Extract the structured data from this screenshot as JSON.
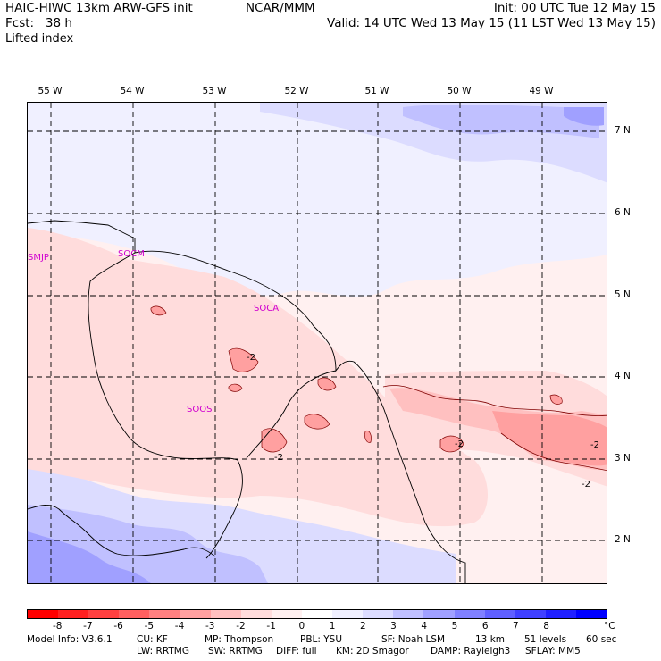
{
  "header": {
    "title": "HAIC-HIWC 13km ARW-GFS init",
    "org": "NCAR/MMM",
    "init": "Init: 00 UTC Tue 12 May 15",
    "fcst": "Fcst:   38 h",
    "valid": "Valid: 14 UTC Wed 13 May 15 (11 LST Wed 13 May 15)",
    "field": "Lifted index"
  },
  "longitudes": [
    "55 W",
    "54 W",
    "53 W",
    "52 W",
    "51 W",
    "50 W",
    "49 W"
  ],
  "latitudes": [
    "7 N",
    "6 N",
    "5 N",
    "4 N",
    "3 N",
    "2 N"
  ],
  "regions": [
    "SMJP",
    "SOCM",
    "SOCA",
    "SOOS"
  ],
  "contour_labels": [
    "-2",
    "-2",
    "-2",
    "-2",
    "-2"
  ],
  "colorbar": {
    "colors": [
      "#ff0000",
      "#ff2020",
      "#ff4040",
      "#ff6060",
      "#ff8080",
      "#ffa0a0",
      "#ffc0c0",
      "#ffdcdc",
      "#fff0f0",
      "#ffffff",
      "#f0f0ff",
      "#dcdcff",
      "#c0c0ff",
      "#a0a0ff",
      "#8080ff",
      "#6060ff",
      "#4040ff",
      "#2020ff",
      "#0000ff"
    ],
    "ticks": [
      "-8",
      "-7",
      "-6",
      "-5",
      "-4",
      "-3",
      "-2",
      "-1",
      "0",
      "1",
      "2",
      "3",
      "4",
      "5",
      "6",
      "7",
      "8"
    ],
    "unit": "°C"
  },
  "footer": {
    "line1": [
      "Model Info: V3.6.1",
      "CU: KF",
      "MP: Thompson",
      "PBL: YSU",
      "SF: Noah LSM",
      "13 km",
      "51 levels",
      "60 sec"
    ],
    "line2": [
      "LW: RRTMG",
      "SW: RRTMG",
      "DIFF: full",
      "KM: 2D Smagor",
      "DAMP: Rayleigh3",
      "SFLAY: MM5"
    ]
  }
}
